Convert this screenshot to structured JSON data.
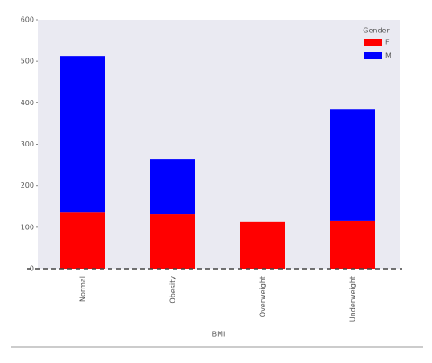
{
  "chart_data": {
    "type": "stacked_bar",
    "categories": [
      "Normal",
      "Obesity",
      "Overweight",
      "Underweight"
    ],
    "series": [
      {
        "name": "F",
        "color": "#ff0000",
        "values": [
          136,
          132,
          113,
          115
        ]
      },
      {
        "name": "M",
        "color": "#0000ff",
        "values": [
          377,
          132,
          0,
          270
        ]
      }
    ],
    "x_label": "BMI",
    "legend_title": "Gender",
    "legend_position": "upper right",
    "ylim": [
      0,
      600
    ],
    "yticks": [
      0,
      100,
      200,
      300,
      400,
      500,
      600
    ]
  }
}
